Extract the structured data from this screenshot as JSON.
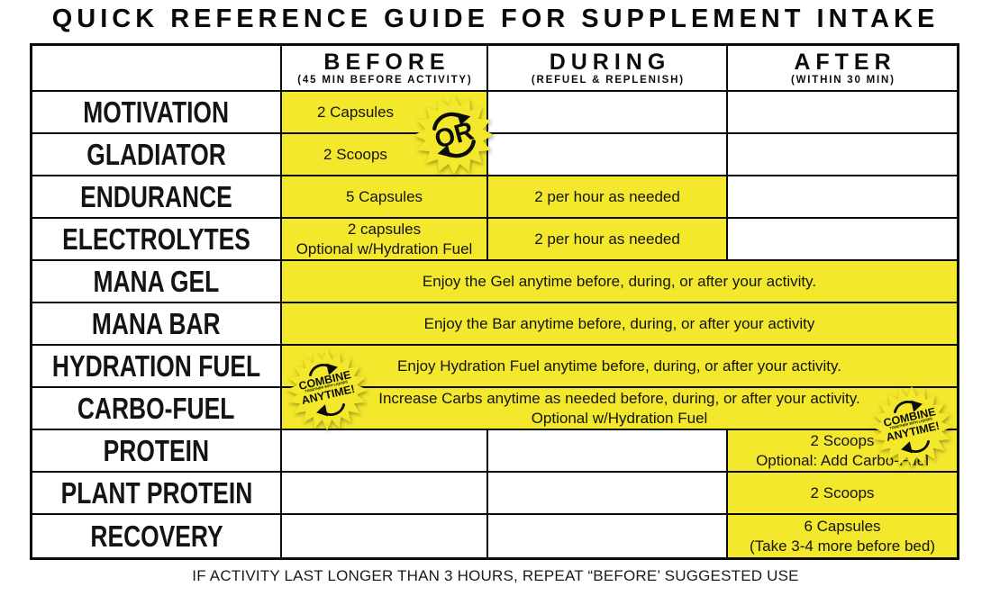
{
  "title": "QUICK REFERENCE GUIDE FOR SUPPLEMENT INTAKE",
  "footer_note": "IF ACTIVITY LAST LONGER THAN 3 HOURS, REPEAT “BEFORE’ SUGGESTED USE",
  "colors": {
    "highlight": "#F3E82B",
    "border": "#0A0A0A",
    "text": "#141414"
  },
  "columns": [
    {
      "label": "BEFORE",
      "sublabel": "(45 MIN BEFORE ACTIVITY)"
    },
    {
      "label": "DURING",
      "sublabel": "(REFUEL & REPLENISH)"
    },
    {
      "label": "AFTER",
      "sublabel": "(WITHIN 30 MIN)"
    }
  ],
  "rows": [
    {
      "name": "MOTIVATION",
      "before": "2 Capsules"
    },
    {
      "name": "GLADIATOR",
      "before": "2 Scoops"
    },
    {
      "name": "ENDURANCE",
      "before": "5 Capsules",
      "during": "2 per hour as needed"
    },
    {
      "name": "ELECTROLYTES",
      "before_line1": "2 capsules",
      "before_line2": "Optional w/Hydration Fuel",
      "during": "2 per hour as needed"
    },
    {
      "name": "MANA GEL",
      "all": "Enjoy the Gel anytime before, during, or after your activity."
    },
    {
      "name": "MANA BAR",
      "all": "Enjoy the Bar anytime before, during, or after your activity"
    },
    {
      "name": "HYDRATION FUEL",
      "all": "Enjoy Hydration Fuel anytime before, during, or after your activity."
    },
    {
      "name": "CARBO-FUEL",
      "all_line1": "Increase Carbs anytime as needed before, during, or after your activity.",
      "all_line2": "Optional w/Hydration Fuel"
    },
    {
      "name": "PROTEIN",
      "after_line1": "2 Scoops",
      "after_line2": "Optional: Add Carbo-Fuel"
    },
    {
      "name": "PLANT PROTEIN",
      "after": "2 Scoops"
    },
    {
      "name": "RECOVERY",
      "after_line1": "6 Capsules",
      "after_line2": "(Take 3-4 more before bed)"
    }
  ],
  "badges": {
    "or": "OR",
    "combine_line1": "COMBINE",
    "combine_line2": "TOGETHER WITH LIQUIDS",
    "combine_line3": "ANYTIME!"
  }
}
